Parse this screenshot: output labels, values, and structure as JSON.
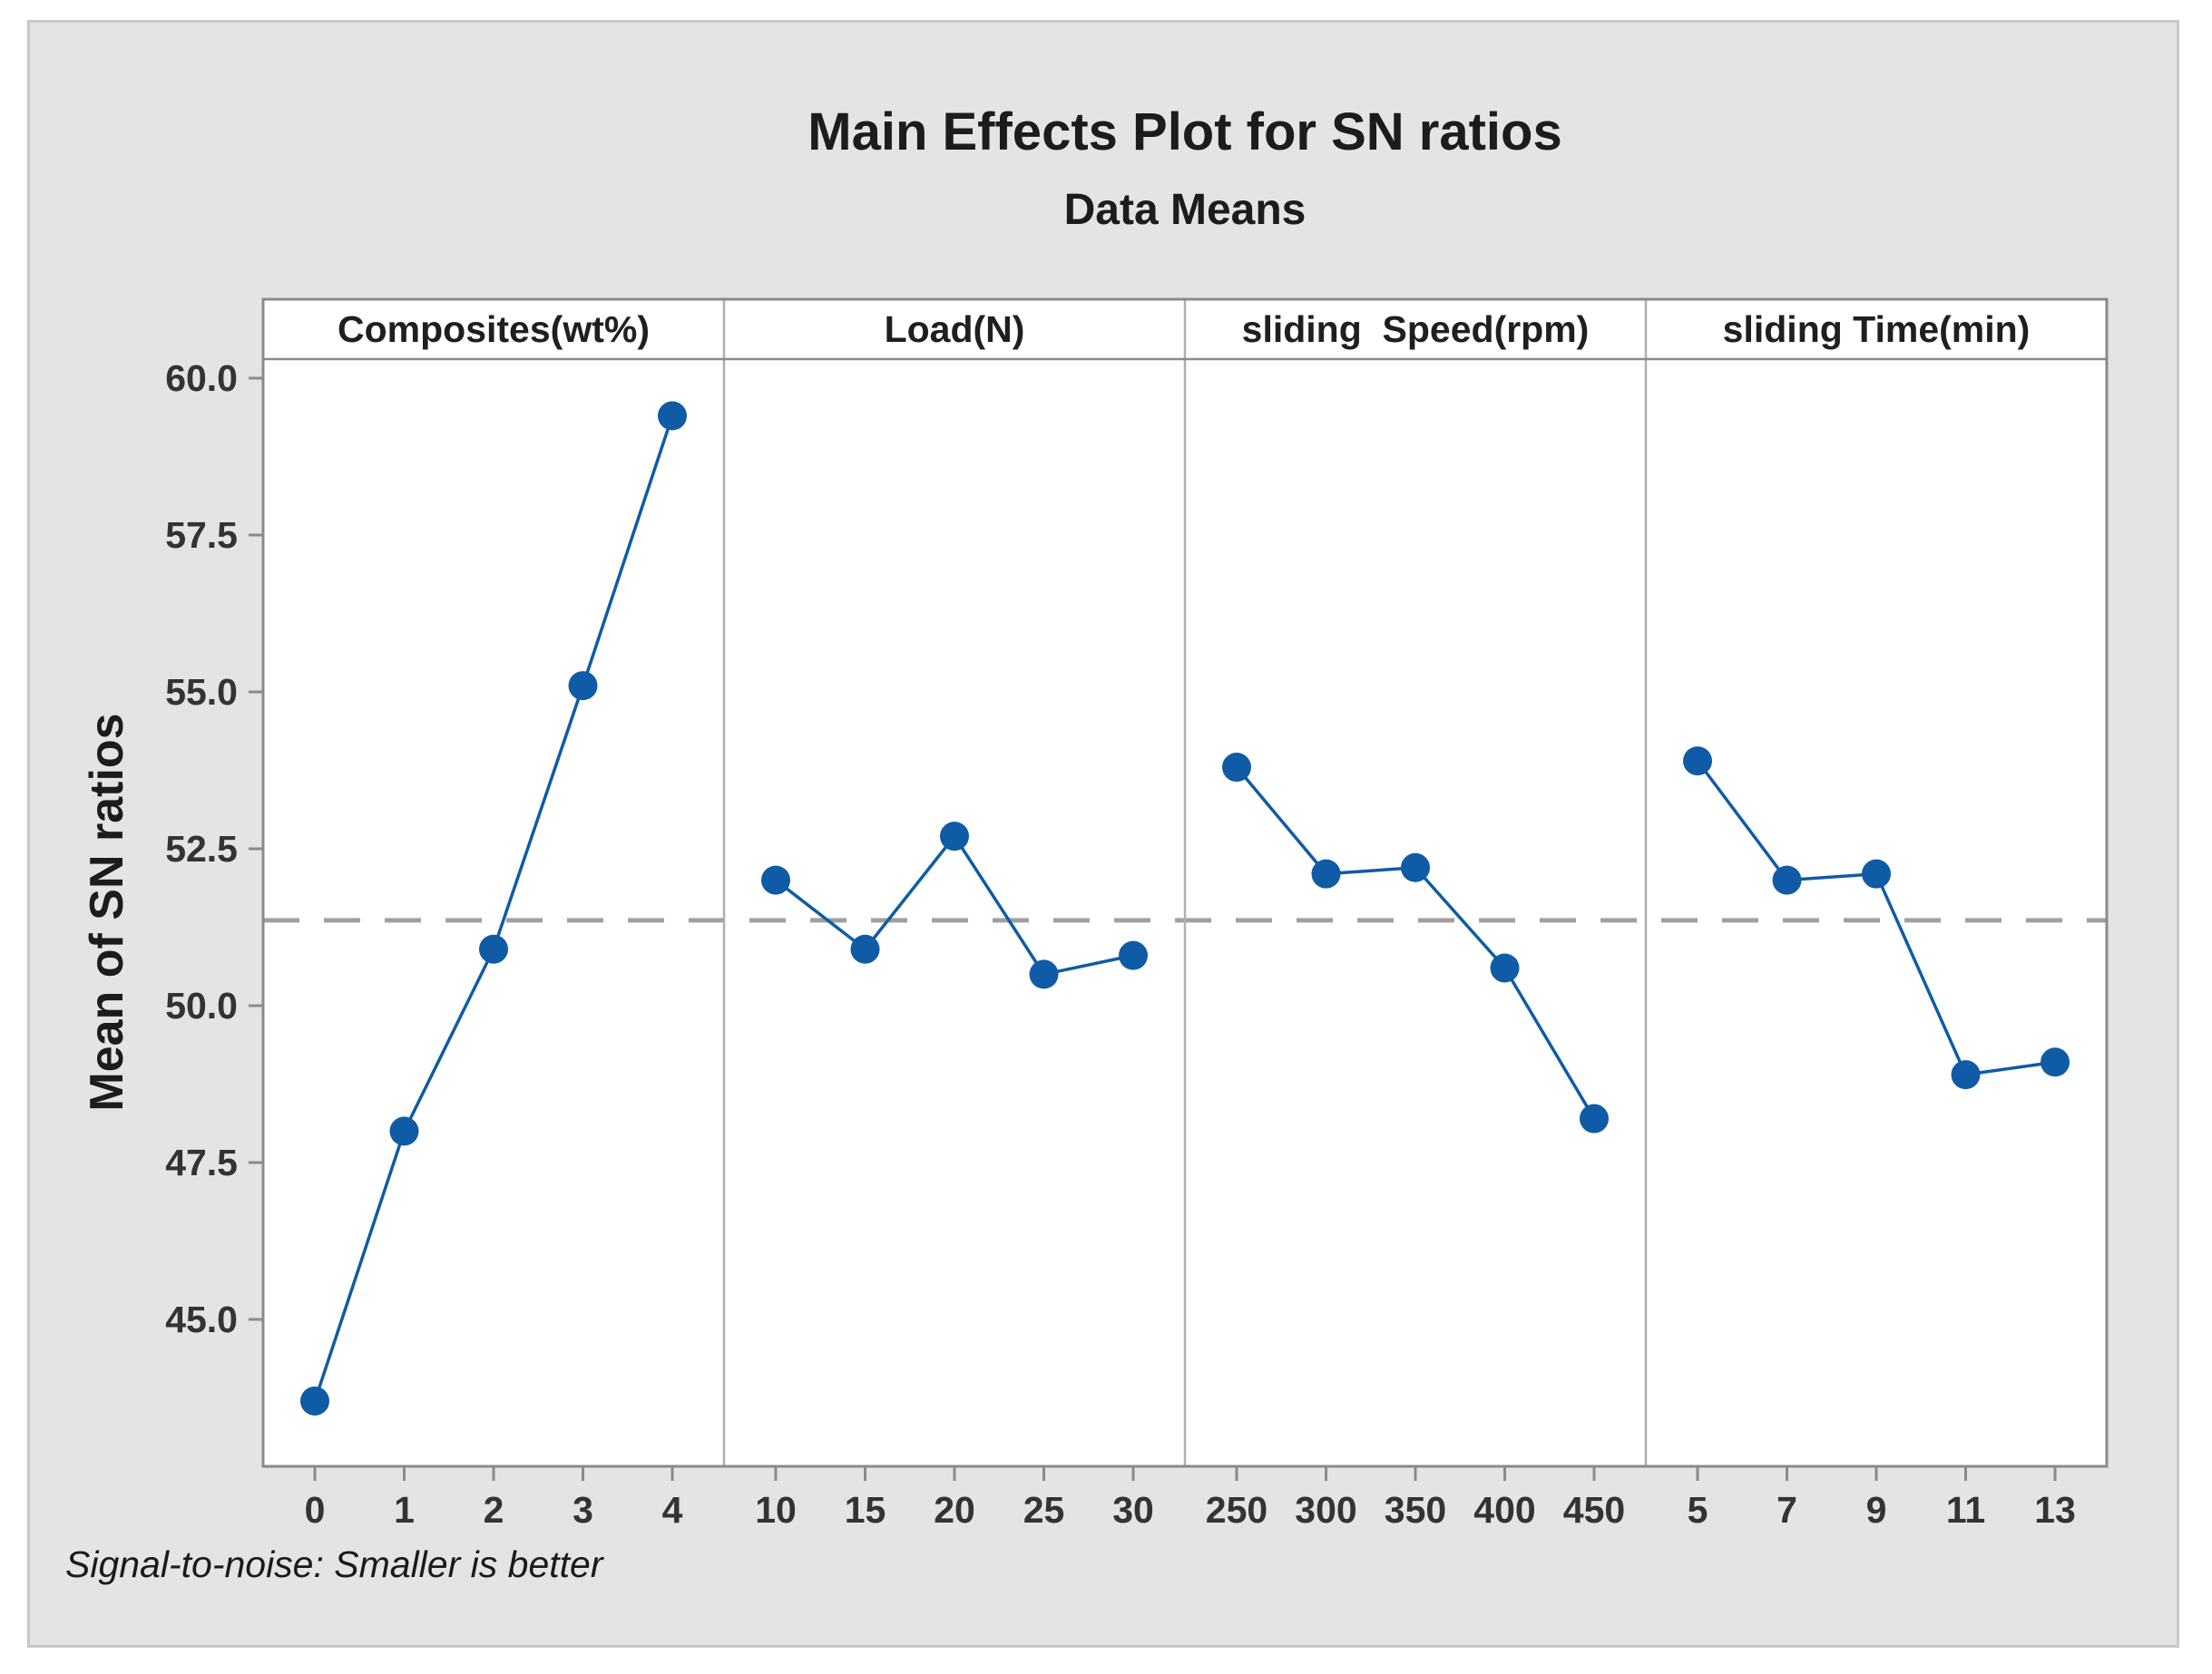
{
  "figure": {
    "title": "Main Effects Plot for SN ratios",
    "subtitle": "Data Means",
    "y_axis_label": "Mean of SN ratios",
    "footnote": "Signal-to-noise: Smaller is better"
  },
  "colors": {
    "series": "#0F5BA5",
    "mean_line": "#A0A0A0",
    "panel_background": "#FFFFFF",
    "figure_background": "#E4E4E4",
    "frame": "#8A8A8A",
    "divider": "#AFAFAF",
    "tick": "#8A8A8A",
    "label_text": "#1F1F1F",
    "tick_text": "#333333"
  },
  "chart_data": {
    "type": "line",
    "title": "Main Effects Plot for SN ratios",
    "subtitle": "Data Means",
    "ylabel": "Mean of SN ratios",
    "footnote": "Signal-to-noise: Smaller is better",
    "grid": "off",
    "marker": "filled-circle",
    "overall_mean": 51.36,
    "mean_line_style": "dashed",
    "ylim": [
      42.6,
      60.3
    ],
    "y_ticks": [
      45.0,
      47.5,
      50.0,
      52.5,
      55.0,
      57.5,
      60.0
    ],
    "y_tick_labels": [
      "45.0",
      "47.5",
      "50.0",
      "52.5",
      "55.0",
      "57.5",
      "60.0"
    ],
    "panels": [
      {
        "label": "Composites(wt%)",
        "categories": [
          "0",
          "1",
          "2",
          "3",
          "4"
        ],
        "values": [
          43.7,
          48.0,
          50.9,
          55.1,
          59.4
        ]
      },
      {
        "label": "Load(N)",
        "categories": [
          "10",
          "15",
          "20",
          "25",
          "30"
        ],
        "values": [
          52.0,
          50.9,
          52.7,
          50.5,
          50.8
        ]
      },
      {
        "label": "sliding  Speed(rpm)",
        "categories": [
          "250",
          "300",
          "350",
          "400",
          "450"
        ],
        "values": [
          53.8,
          52.1,
          52.2,
          50.6,
          48.2
        ]
      },
      {
        "label": "sliding Time(min)",
        "categories": [
          "5",
          "7",
          "9",
          "11",
          "13"
        ],
        "values": [
          53.9,
          52.0,
          52.1,
          48.9,
          49.1
        ]
      }
    ]
  }
}
